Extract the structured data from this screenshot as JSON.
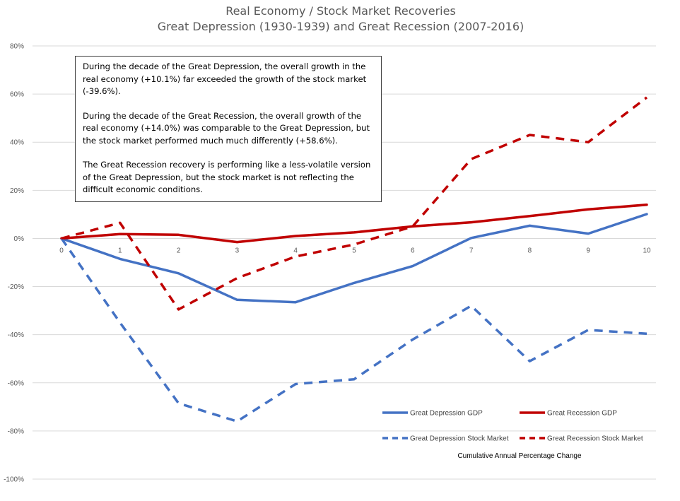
{
  "chart_data": {
    "type": "line",
    "title": "Real Economy / Stock Market Recoveries",
    "subtitle": "Great Depression (1930-1939) and Great Recession (2007-2016)",
    "xlabel": "Cumulative Annual Percentage Change",
    "ylabel": "",
    "x": [
      0,
      1,
      2,
      3,
      4,
      5,
      6,
      7,
      8,
      9,
      10
    ],
    "x_tick_labels": [
      "0",
      "1",
      "2",
      "3",
      "4",
      "5",
      "6",
      "7",
      "8",
      "9",
      "10"
    ],
    "ylim": [
      -100,
      80
    ],
    "y_ticks": [
      80,
      60,
      40,
      20,
      0,
      -20,
      -40,
      -60,
      -80,
      -100
    ],
    "y_tick_labels": [
      "80%",
      "60%",
      "40%",
      "20%",
      "0%",
      "-20%",
      "-40%",
      "-60%",
      "-80%",
      "-100%"
    ],
    "grid": true,
    "legend_position": "bottom-right",
    "series": [
      {
        "name": "Great Depression GDP",
        "color": "#4472c4",
        "dash": "solid",
        "values": [
          0,
          -8.5,
          -14.5,
          -25.5,
          -26.5,
          -18.5,
          -11.5,
          0.2,
          5.3,
          2,
          10.1
        ]
      },
      {
        "name": "Great Recession GDP",
        "color": "#c00000",
        "dash": "solid",
        "values": [
          0,
          1.8,
          1.5,
          -1.5,
          1,
          2.5,
          5,
          6.7,
          9.3,
          12.1,
          14
        ]
      },
      {
        "name": "Great Depression Stock Market",
        "color": "#4472c4",
        "dash": "dashed",
        "values": [
          0,
          -35,
          -68.5,
          -76,
          -60.5,
          -58.5,
          -42,
          -28,
          -51,
          -38,
          -39.6
        ]
      },
      {
        "name": "Great Recession Stock Market",
        "color": "#c00000",
        "dash": "dashed",
        "values": [
          0,
          6.5,
          -29.5,
          -16.5,
          -7.5,
          -2.5,
          5,
          33,
          43,
          40,
          58.6
        ]
      }
    ],
    "annotation": {
      "paragraphs": [
        "During the decade of the Great Depression, the overall growth in the real economy (+10.1%) far exceeded the growth of the stock market (-39.6%).",
        "During the decade of the Great Recession, the overall growth of the real economy (+14.0%) was comparable to the Great Depression, but the stock market performed much much differently (+58.6%).",
        "The Great Recession recovery is performing like a less-volatile version of the Great Depression, but the stock market is not reflecting the difficult economic conditions."
      ]
    }
  }
}
